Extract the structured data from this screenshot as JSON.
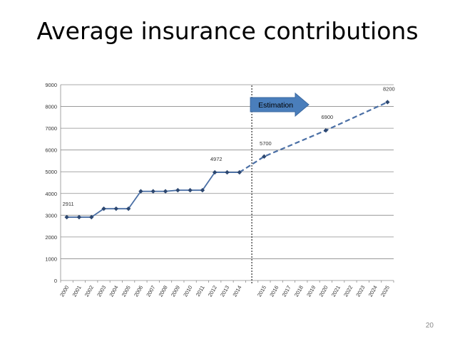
{
  "slide": {
    "title": "Average insurance contributions",
    "page_number": "20"
  },
  "chart_data": {
    "type": "line",
    "title": "",
    "xlabel": "",
    "ylabel": "",
    "ylim": [
      0,
      9000
    ],
    "yticks": [
      0,
      1000,
      2000,
      3000,
      4000,
      5000,
      6000,
      7000,
      8000,
      9000
    ],
    "grid": true,
    "categories": [
      "2000",
      "2001",
      "2002",
      "2003",
      "2004",
      "2005",
      "2006",
      "2007",
      "2008",
      "2009",
      "2010",
      "2011",
      "2012",
      "2013",
      "2014",
      "",
      "2015",
      "2016",
      "2017",
      "2018",
      "2019",
      "2020",
      "2021",
      "2022",
      "2023",
      "2024",
      "2025"
    ],
    "series": [
      {
        "style": "solid",
        "color": "#4a6fa5",
        "x": [
          "2000",
          "2001",
          "2002",
          "2003",
          "2004",
          "2005",
          "2006",
          "2007",
          "2008",
          "2009",
          "2010",
          "2011",
          "2012",
          "2013",
          "2014"
        ],
        "values": [
          2911,
          2911,
          2911,
          3300,
          3300,
          3300,
          4100,
          4100,
          4100,
          4150,
          4150,
          4150,
          4972,
          4972,
          4972
        ]
      },
      {
        "style": "dashed",
        "color": "#4a6fa5",
        "x": [
          "2014",
          "2015",
          "2020",
          "2025"
        ],
        "values": [
          4972,
          5700,
          6900,
          8200
        ]
      }
    ],
    "data_labels": [
      {
        "x": "2000",
        "value": 2911,
        "text": "2911"
      },
      {
        "x": "2012",
        "value": 4972,
        "text": "4972"
      },
      {
        "x": "2015",
        "value": 5700,
        "text": "5700"
      },
      {
        "x": "2020",
        "value": 6900,
        "text": "6900"
      },
      {
        "x": "2025",
        "value": 8200,
        "text": "8200"
      }
    ],
    "annotations": {
      "estimation_label": "Estimation",
      "arrow_color": "#4a7ebb",
      "divider_after": "2014"
    }
  }
}
